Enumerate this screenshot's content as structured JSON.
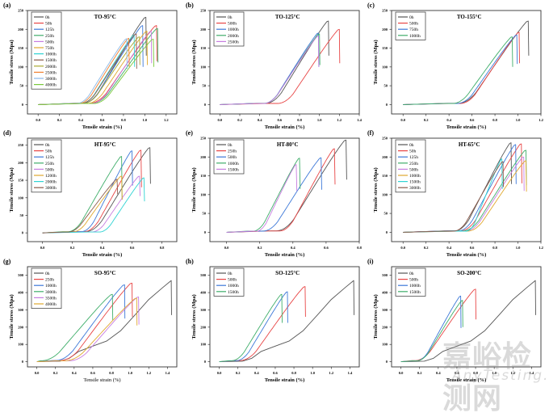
{
  "watermark": {
    "cn": "嘉峪检测网",
    "en": "AnyTesting.com"
  },
  "chart_data": [
    {
      "panel": "(a)",
      "title": "TO-95°C",
      "type": "line",
      "xlabel": "Tensile strain (%)",
      "ylabel": "Tensile stress (Mpa)",
      "xlim": [
        -0.1,
        1.3
      ],
      "ylim": [
        -25,
        250
      ],
      "xticks": [
        "0.0",
        "0.2",
        "0.4",
        "0.6",
        "0.8",
        "1.0",
        "1.2"
      ],
      "xtick_vals": [
        0,
        0.2,
        0.4,
        0.6,
        0.8,
        1.0,
        1.2
      ],
      "yticks": [
        "0",
        "50",
        "100",
        "150",
        "200",
        "250"
      ],
      "ytick_vals": [
        0,
        50,
        100,
        150,
        200,
        250
      ],
      "legend": "top-left",
      "series": [
        {
          "name": "0h",
          "color": "#555555",
          "onset": 0.42,
          "peak_x": 1.01,
          "peak_y": 232,
          "drop_y": 130
        },
        {
          "name": "50h",
          "color": "#e84545",
          "onset": 0.48,
          "peak_x": 1.11,
          "peak_y": 210,
          "drop_y": 115
        },
        {
          "name": "125h",
          "color": "#3c78d8",
          "onset": 0.42,
          "peak_x": 0.98,
          "peak_y": 210,
          "drop_y": 100
        },
        {
          "name": "250h",
          "color": "#3fae6a",
          "onset": 0.5,
          "peak_x": 1.12,
          "peak_y": 202,
          "drop_y": 112
        },
        {
          "name": "500h",
          "color": "#c77de0",
          "onset": 0.5,
          "peak_x": 1.06,
          "peak_y": 195,
          "drop_y": 110
        },
        {
          "name": "750h",
          "color": "#e0a82e",
          "onset": 0.46,
          "peak_x": 1.02,
          "peak_y": 195,
          "drop_y": 105
        },
        {
          "name": "1000h",
          "color": "#2fd3d3",
          "onset": 0.4,
          "peak_x": 0.9,
          "peak_y": 185,
          "drop_y": 100
        },
        {
          "name": "1500h",
          "color": "#8b5a4a",
          "onset": 0.4,
          "peak_x": 0.92,
          "peak_y": 188,
          "drop_y": 95
        },
        {
          "name": "2000h",
          "color": "#a8a832",
          "onset": 0.42,
          "peak_x": 0.95,
          "peak_y": 180,
          "drop_y": 105
        },
        {
          "name": "2500h",
          "color": "#f08030",
          "onset": 0.38,
          "peak_x": 0.85,
          "peak_y": 176,
          "drop_y": 100
        },
        {
          "name": "3000h",
          "color": "#8ab8e8",
          "onset": 0.36,
          "peak_x": 0.83,
          "peak_y": 175,
          "drop_y": 95
        },
        {
          "name": "4000h",
          "color": "#7ac83a",
          "onset": 0.52,
          "peak_x": 1.08,
          "peak_y": 174,
          "drop_y": 100
        }
      ]
    },
    {
      "panel": "(b)",
      "title": "TO-125°C",
      "type": "line",
      "xlabel": "Tensile strain (%)",
      "ylabel": "Tensile stress (Mpa)",
      "xlim": [
        -0.1,
        1.4
      ],
      "ylim": [
        -25,
        250
      ],
      "xticks": [
        "0.0",
        "0.2",
        "0.4",
        "0.6",
        "0.8",
        "1.0",
        "1.2",
        "1.4"
      ],
      "xtick_vals": [
        0,
        0.2,
        0.4,
        0.6,
        0.8,
        1.0,
        1.2,
        1.4
      ],
      "yticks": [
        "0",
        "50",
        "100",
        "150",
        "200",
        "250"
      ],
      "ytick_vals": [
        0,
        50,
        100,
        150,
        200,
        250
      ],
      "legend": "top-left",
      "series": [
        {
          "name": "0h",
          "color": "#555555",
          "onset": 0.46,
          "peak_x": 1.09,
          "peak_y": 222,
          "drop_y": 130
        },
        {
          "name": "500h",
          "color": "#e84545",
          "onset": 0.58,
          "peak_x": 1.2,
          "peak_y": 200,
          "drop_y": 110
        },
        {
          "name": "1000h",
          "color": "#3c78d8",
          "onset": 0.44,
          "peak_x": 0.99,
          "peak_y": 190,
          "drop_y": 100
        },
        {
          "name": "2000h",
          "color": "#3fae6a",
          "onset": 0.44,
          "peak_x": 1.0,
          "peak_y": 188,
          "drop_y": 105
        },
        {
          "name": "2500h",
          "color": "#c77de0",
          "onset": 0.44,
          "peak_x": 0.99,
          "peak_y": 182,
          "drop_y": 100
        }
      ]
    },
    {
      "panel": "(c)",
      "title": "TO-155°C",
      "type": "line",
      "xlabel": "Tensile strain (%)",
      "ylabel": "Tensile stress (Mpa)",
      "xlim": [
        -0.1,
        1.2
      ],
      "ylim": [
        -25,
        250
      ],
      "xticks": [
        "0.0",
        "0.2",
        "0.4",
        "0.6",
        "0.8",
        "1.0",
        "1.2"
      ],
      "xtick_vals": [
        0,
        0.2,
        0.4,
        0.6,
        0.8,
        1.0,
        1.2
      ],
      "yticks": [
        "0",
        "50",
        "100",
        "150",
        "200",
        "250"
      ],
      "ytick_vals": [
        0,
        50,
        100,
        150,
        200,
        250
      ],
      "legend": "top-left",
      "series": [
        {
          "name": "0h",
          "color": "#555555",
          "onset": 0.48,
          "peak_x": 1.09,
          "peak_y": 222,
          "drop_y": 130
        },
        {
          "name": "500h",
          "color": "#e84545",
          "onset": 0.5,
          "peak_x": 1.01,
          "peak_y": 192,
          "drop_y": 110
        },
        {
          "name": "750h",
          "color": "#3c78d8",
          "onset": 0.47,
          "peak_x": 0.99,
          "peak_y": 185,
          "drop_y": 108
        },
        {
          "name": "1000h",
          "color": "#3fae6a",
          "onset": 0.43,
          "peak_x": 0.95,
          "peak_y": 180,
          "drop_y": 100
        }
      ]
    },
    {
      "panel": "(d)",
      "title": "HT-95°C",
      "type": "line",
      "xlabel": "Tensile strain (%)",
      "ylabel": "Tensile stress (Mpa)",
      "xlim": [
        -0.1,
        0.9
      ],
      "ylim": [
        -25,
        270
      ],
      "xticks": [
        "0.0",
        "0.2",
        "0.4",
        "0.6",
        "0.8"
      ],
      "xtick_vals": [
        0,
        0.2,
        0.4,
        0.6,
        0.8
      ],
      "yticks": [
        "0",
        "50",
        "100",
        "150",
        "200",
        "250"
      ],
      "ytick_vals": [
        0,
        50,
        100,
        150,
        200,
        250
      ],
      "legend": "top-left",
      "series": [
        {
          "name": "0h",
          "color": "#555555",
          "onset": 0.29,
          "peak_x": 0.72,
          "peak_y": 243,
          "drop_y": 140
        },
        {
          "name": "50h",
          "color": "#e84545",
          "onset": 0.28,
          "peak_x": 0.66,
          "peak_y": 236,
          "drop_y": 130
        },
        {
          "name": "125h",
          "color": "#3c78d8",
          "onset": 0.26,
          "peak_x": 0.6,
          "peak_y": 234,
          "drop_y": 135
        },
        {
          "name": "250h",
          "color": "#3fae6a",
          "onset": 0.17,
          "peak_x": 0.53,
          "peak_y": 218,
          "drop_y": 95
        },
        {
          "name": "500h",
          "color": "#c77de0",
          "onset": 0.33,
          "peak_x": 0.65,
          "peak_y": 162,
          "drop_y": 105
        },
        {
          "name": "1200h",
          "color": "#e0a82e",
          "onset": 0.2,
          "peak_x": 0.53,
          "peak_y": 162,
          "drop_y": 95
        },
        {
          "name": "2000h",
          "color": "#2fd3d3",
          "onset": 0.38,
          "peak_x": 0.68,
          "peak_y": 157,
          "drop_y": 90
        },
        {
          "name": "3000h",
          "color": "#8b5a4a",
          "onset": 0.17,
          "peak_x": 0.5,
          "peak_y": 153,
          "drop_y": 110
        }
      ]
    },
    {
      "panel": "(e)",
      "title": "HT-80°C",
      "type": "line",
      "xlabel": "Tensile strain (%)",
      "ylabel": "Tensile stress (Mpa)",
      "xlim": [
        -0.1,
        0.8
      ],
      "ylim": [
        -25,
        250
      ],
      "xticks": [
        "0.0",
        "0.2",
        "0.4",
        "0.6",
        "0.8"
      ],
      "xtick_vals": [
        0,
        0.2,
        0.4,
        0.6,
        0.8
      ],
      "yticks": [
        "0",
        "50",
        "100",
        "150",
        "200",
        "250"
      ],
      "ytick_vals": [
        0,
        50,
        100,
        150,
        200,
        250
      ],
      "legend": "top-left",
      "series": [
        {
          "name": "0h",
          "color": "#555555",
          "onset": 0.3,
          "peak_x": 0.72,
          "peak_y": 245,
          "drop_y": 140
        },
        {
          "name": "250h",
          "color": "#e84545",
          "onset": 0.32,
          "peak_x": 0.65,
          "peak_y": 222,
          "drop_y": 127
        },
        {
          "name": "500h",
          "color": "#3c78d8",
          "onset": 0.22,
          "peak_x": 0.57,
          "peak_y": 198,
          "drop_y": 113
        },
        {
          "name": "1000h",
          "color": "#3fae6a",
          "onset": 0.16,
          "peak_x": 0.44,
          "peak_y": 197,
          "drop_y": 115
        },
        {
          "name": "1500h",
          "color": "#c77de0",
          "onset": 0.18,
          "peak_x": 0.42,
          "peak_y": 180,
          "drop_y": 110
        }
      ]
    },
    {
      "panel": "(f)",
      "title": "HT-65°C",
      "type": "line",
      "xlabel": "Tensile strain (%)",
      "ylabel": "Tensile stress (Mpa)",
      "xlim": [
        -0.1,
        1.2
      ],
      "ylim": [
        -25,
        250
      ],
      "xticks": [
        "0.0",
        "0.2",
        "0.4",
        "0.6",
        "0.8",
        "1.0",
        "1.2"
      ],
      "xtick_vals": [
        0,
        0.2,
        0.4,
        0.6,
        0.8,
        1.0,
        1.2
      ],
      "yticks": [
        "0",
        "50",
        "100",
        "150",
        "200",
        "250"
      ],
      "ytick_vals": [
        0,
        50,
        100,
        150,
        200,
        250
      ],
      "legend": "top-left",
      "series": [
        {
          "name": "0h",
          "color": "#555555",
          "onset": 0.45,
          "peak_x": 0.94,
          "peak_y": 238,
          "drop_y": 128
        },
        {
          "name": "50h",
          "color": "#e84545",
          "onset": 0.5,
          "peak_x": 1.03,
          "peak_y": 235,
          "drop_y": 130
        },
        {
          "name": "125h",
          "color": "#3c78d8",
          "onset": 0.48,
          "peak_x": 0.98,
          "peak_y": 233,
          "drop_y": 128
        },
        {
          "name": "250h",
          "color": "#3fae6a",
          "onset": 0.52,
          "peak_x": 1.07,
          "peak_y": 218,
          "drop_y": 125
        },
        {
          "name": "500h",
          "color": "#c77de0",
          "onset": 0.54,
          "peak_x": 1.05,
          "peak_y": 200,
          "drop_y": 110
        },
        {
          "name": "1000h",
          "color": "#e0a82e",
          "onset": 0.56,
          "peak_x": 1.07,
          "peak_y": 190,
          "drop_y": 108
        },
        {
          "name": "1500h",
          "color": "#2fd3d3",
          "onset": 0.55,
          "peak_x": 0.86,
          "peak_y": 195,
          "drop_y": 115
        },
        {
          "name": "3000h",
          "color": "#8b5a4a",
          "onset": 0.44,
          "peak_x": 0.87,
          "peak_y": 188,
          "drop_y": 120
        }
      ]
    },
    {
      "panel": "(g)",
      "title": "SO-95°C",
      "type": "line",
      "xlabel": "Tensile strain (%)",
      "ylabel": "Tensile stress (Mpa)",
      "xlim": [
        -0.1,
        1.5
      ],
      "ylim": [
        -30,
        550
      ],
      "xticks": [
        "0.0",
        "0.2",
        "0.4",
        "0.6",
        "0.8",
        "1.0",
        "1.2",
        "1.4"
      ],
      "xtick_vals": [
        0,
        0.2,
        0.4,
        0.6,
        0.8,
        1.0,
        1.2,
        1.4
      ],
      "yticks": [
        "0",
        "100",
        "200",
        "300",
        "400",
        "500"
      ],
      "ytick_vals": [
        0,
        100,
        200,
        300,
        400,
        500
      ],
      "legend": "top-left",
      "series": [
        {
          "name": "0h",
          "color": "#555555",
          "onset": 0.25,
          "peak_x": 1.44,
          "peak_y": 470,
          "drop_y": 270,
          "knee": true
        },
        {
          "name": "250h",
          "color": "#e84545",
          "onset": 0.25,
          "peak_x": 1.02,
          "peak_y": 455,
          "drop_y": 260
        },
        {
          "name": "1000h",
          "color": "#3c78d8",
          "onset": 0.2,
          "peak_x": 0.94,
          "peak_y": 445,
          "drop_y": 250
        },
        {
          "name": "3000h",
          "color": "#3fae6a",
          "onset": 0.05,
          "peak_x": 0.81,
          "peak_y": 390,
          "drop_y": 240
        },
        {
          "name": "3500h",
          "color": "#c77de0",
          "onset": 0.35,
          "peak_x": 1.09,
          "peak_y": 375,
          "drop_y": 215
        },
        {
          "name": "4000h",
          "color": "#e0a82e",
          "onset": 0.3,
          "peak_x": 1.07,
          "peak_y": 368,
          "drop_y": 210
        }
      ]
    },
    {
      "panel": "(h)",
      "title": "SO-125°C",
      "type": "line",
      "xlabel": "Tensile strain (%)",
      "ylabel": "Tensile stress (Mpa)",
      "xlim": [
        -0.1,
        1.5
      ],
      "ylim": [
        -30,
        550
      ],
      "xticks": [
        "0.0",
        "0.2",
        "0.4",
        "0.6",
        "0.8",
        "1.0",
        "1.2",
        "1.4"
      ],
      "xtick_vals": [
        0,
        0.2,
        0.4,
        0.6,
        0.8,
        1.0,
        1.2,
        1.4
      ],
      "yticks": [
        "0",
        "100",
        "200",
        "300",
        "400",
        "500"
      ],
      "ytick_vals": [
        0,
        100,
        200,
        300,
        400,
        500
      ],
      "legend": "top-left",
      "series": [
        {
          "name": "0h",
          "color": "#555555",
          "onset": 0.25,
          "peak_x": 1.44,
          "peak_y": 470,
          "drop_y": 270,
          "knee": true
        },
        {
          "name": "500h",
          "color": "#e84545",
          "onset": 0.22,
          "peak_x": 0.92,
          "peak_y": 435,
          "drop_y": 260
        },
        {
          "name": "1000h",
          "color": "#3c78d8",
          "onset": 0.18,
          "peak_x": 0.73,
          "peak_y": 405,
          "drop_y": 225
        },
        {
          "name": "1500h",
          "color": "#3fae6a",
          "onset": 0.13,
          "peak_x": 0.67,
          "peak_y": 390,
          "drop_y": 225
        }
      ]
    },
    {
      "panel": "(i)",
      "title": "SO-200°C",
      "type": "line",
      "xlabel": "Tensile strain (%)",
      "ylabel": "Tensile stress (Mpa)",
      "xlim": [
        -0.1,
        1.5
      ],
      "ylim": [
        -30,
        550
      ],
      "xticks": [
        "0.0",
        "0.2",
        "0.4",
        "0.6",
        "0.8",
        "1.0",
        "1.2",
        "1.4"
      ],
      "xtick_vals": [
        0,
        0.2,
        0.4,
        0.6,
        0.8,
        1.0,
        1.2,
        1.4
      ],
      "yticks": [
        "0",
        "100",
        "200",
        "300",
        "400",
        "500"
      ],
      "ytick_vals": [
        0,
        100,
        200,
        300,
        400,
        500
      ],
      "legend": "top-left",
      "series": [
        {
          "name": "0h",
          "color": "#555555",
          "onset": 0.25,
          "peak_x": 1.44,
          "peak_y": 470,
          "drop_y": 270,
          "knee": true
        },
        {
          "name": "500h",
          "color": "#e84545",
          "onset": 0.15,
          "peak_x": 0.8,
          "peak_y": 420,
          "drop_y": 245
        },
        {
          "name": "1000h",
          "color": "#3c78d8",
          "onset": 0.17,
          "peak_x": 0.64,
          "peak_y": 380,
          "drop_y": 195
        },
        {
          "name": "1500h",
          "color": "#3fae6a",
          "onset": 0.17,
          "peak_x": 0.66,
          "peak_y": 355,
          "drop_y": 200
        }
      ]
    }
  ]
}
